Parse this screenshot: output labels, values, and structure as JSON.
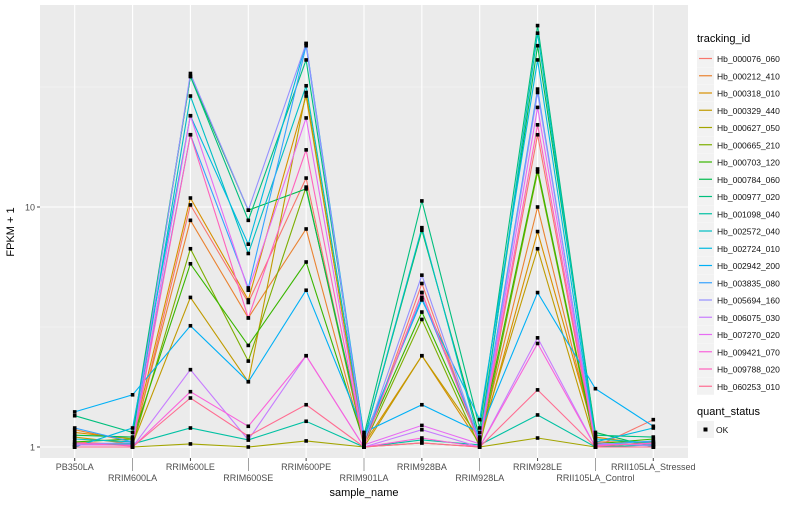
{
  "chart_data": {
    "type": "line",
    "title": "",
    "xlabel": "sample_name",
    "ylabel": "FPKM + 1",
    "yscale": "log10",
    "ylim": [
      0.8,
      69
    ],
    "yticks": [
      1,
      10
    ],
    "ytick_labels": [
      "1",
      "10"
    ],
    "grid": true,
    "legend_placement": "right",
    "categories": [
      "PB350LA",
      "RRIM600LA",
      "RRIM600LE",
      "RRIM600SE",
      "RRIM600PE",
      "RRIM901LA",
      "RRIM928BA",
      "RRIM928LA",
      "RRIM928LE",
      "RRII105LA_Control",
      "RRII105LA_Stressed"
    ],
    "legend_title": "tracking_id",
    "shape_legend_title": "quant_status",
    "shape_legend_items": [
      "OK"
    ],
    "series": [
      {
        "name": "Hb_000076_060",
        "color": "#F8766D",
        "values": [
          1.05,
          1.02,
          10.2,
          4.0,
          13.2,
          1.0,
          4.8,
          1.02,
          20,
          1.0,
          1.3
        ]
      },
      {
        "name": "Hb_000212_410",
        "color": "#EA8331",
        "values": [
          1.18,
          1.05,
          8.8,
          3.45,
          8.1,
          1.02,
          4.4,
          1.05,
          10,
          1.05,
          1.05
        ]
      },
      {
        "name": "Hb_000318_010",
        "color": "#D89000",
        "values": [
          1.15,
          1.08,
          10.9,
          4.1,
          29,
          1.03,
          2.4,
          1.03,
          7.9,
          1.1,
          1.02
        ]
      },
      {
        "name": "Hb_000329_440",
        "color": "#C09B00",
        "values": [
          1.1,
          1.03,
          4.2,
          1.87,
          30,
          1.0,
          2.4,
          1.08,
          6.7,
          1.02,
          1.03
        ]
      },
      {
        "name": "Hb_000627_050",
        "color": "#A3A500",
        "values": [
          1.0,
          1.0,
          1.03,
          1.0,
          1.06,
          1.0,
          1.04,
          1.0,
          1.09,
          1.0,
          1.0
        ]
      },
      {
        "name": "Hb_000665_210",
        "color": "#7CAE00",
        "values": [
          1.02,
          1.02,
          6.7,
          2.28,
          12.1,
          1.02,
          3.4,
          1.0,
          14,
          1.0,
          1.05
        ]
      },
      {
        "name": "Hb_000703_120",
        "color": "#39B600",
        "values": [
          1.05,
          1.08,
          5.8,
          2.65,
          5.9,
          1.05,
          3.65,
          1.06,
          14.4,
          1.03,
          1.08
        ]
      },
      {
        "name": "Hb_000784_060",
        "color": "#00BB4E",
        "values": [
          1.12,
          1.1,
          35,
          9.7,
          11.9,
          1.08,
          8.0,
          1.1,
          47,
          1.15,
          1.0
        ]
      },
      {
        "name": "Hb_000977_020",
        "color": "#00BF7D",
        "values": [
          1.35,
          1.15,
          35,
          8.8,
          41,
          1.12,
          10.6,
          1.2,
          57,
          1.12,
          1.1
        ]
      },
      {
        "name": "Hb_001098_040",
        "color": "#00C1A3",
        "values": [
          1.02,
          1.03,
          1.2,
          1.07,
          1.28,
          1.0,
          1.07,
          1.02,
          1.36,
          1.0,
          1.02
        ]
      },
      {
        "name": "Hb_002572_040",
        "color": "#00BFC4",
        "values": [
          1.08,
          1.05,
          29,
          6.4,
          32,
          1.08,
          8.2,
          1.04,
          53,
          1.08,
          1.04
        ]
      },
      {
        "name": "Hb_002724_010",
        "color": "#00BAE0",
        "values": [
          1.0,
          1.2,
          24,
          7.0,
          48,
          1.1,
          4.1,
          1.3,
          41,
          1.05,
          1.2
        ]
      },
      {
        "name": "Hb_002942_200",
        "color": "#00B0F6",
        "values": [
          1.4,
          1.65,
          3.2,
          1.87,
          4.5,
          1.15,
          1.5,
          1.15,
          4.4,
          1.75,
          1.22
        ]
      },
      {
        "name": "Hb_003835_080",
        "color": "#35A2FF",
        "values": [
          1.2,
          1.05,
          20,
          4.6,
          47,
          1.06,
          4.2,
          1.08,
          31,
          1.02,
          1.06
        ]
      },
      {
        "name": "Hb_005694_160",
        "color": "#9590FF",
        "values": [
          1.03,
          1.04,
          36,
          9.7,
          48,
          1.05,
          5.2,
          1.04,
          30,
          1.04,
          1.01
        ]
      },
      {
        "name": "Hb_006075_030",
        "color": "#C77CFF",
        "values": [
          1.0,
          1.0,
          2.1,
          1.07,
          2.4,
          1.0,
          1.18,
          1.0,
          2.85,
          1.0,
          1.0
        ]
      },
      {
        "name": "Hb_007270_020",
        "color": "#E76BF3",
        "values": [
          1.02,
          1.02,
          24,
          4.5,
          23.5,
          1.02,
          1.23,
          1.03,
          26,
          1.02,
          1.03
        ]
      },
      {
        "name": "Hb_009421_070",
        "color": "#FA62DB",
        "values": [
          1.0,
          1.0,
          1.7,
          1.22,
          2.4,
          1.0,
          1.09,
          1.0,
          2.7,
          1.0,
          1.0
        ]
      },
      {
        "name": "Hb_009788_020",
        "color": "#FF62BC",
        "values": [
          1.04,
          1.01,
          20,
          3.45,
          17.3,
          1.01,
          4.4,
          1.02,
          22,
          1.01,
          1.04
        ]
      },
      {
        "name": "Hb_060253_010",
        "color": "#FF6C91",
        "values": [
          1.0,
          1.0,
          1.6,
          1.11,
          1.5,
          1.0,
          1.04,
          1.0,
          1.73,
          1.0,
          1.0
        ]
      }
    ]
  }
}
